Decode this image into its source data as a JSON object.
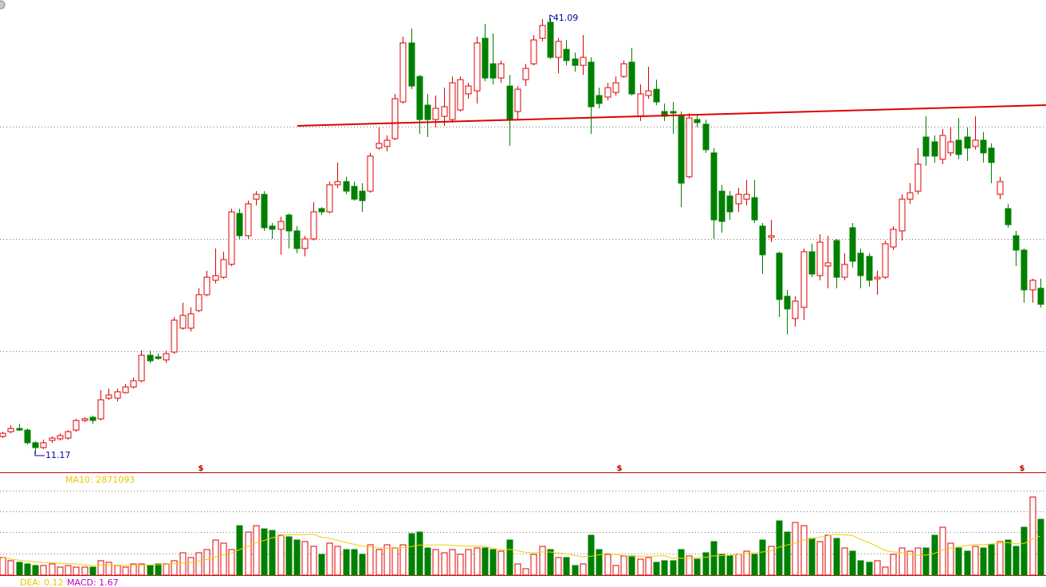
{
  "chart_data": {
    "type": "candlestick",
    "up_color": "#e00000",
    "down_color": "#008000",
    "ma_color": "#f0d000",
    "ylim": [
      9.91,
      42.35
    ],
    "grid_levels": [
      33.65,
      25.94,
      18.23
    ],
    "trendline": [
      33.71,
      35.13
    ],
    "high_label": 41.09,
    "low_label": 11.17,
    "event_markers": [
      "$",
      "$",
      "$"
    ],
    "indicator_labels": [
      "MA10: 2871093",
      "DEA: 0.12",
      "MACD: 1.67"
    ],
    "volume_ylim": [
      0,
      7526400
    ],
    "volume_grid_levels": [
      6233000,
      4704000,
      3175000,
      1588000
    ],
    "open": [
      12.37,
      12.7,
      12.92,
      12.81,
      11.94,
      11.61,
      12.1,
      12.21,
      12.26,
      12.81,
      13.47,
      13.69,
      13.58,
      15.0,
      15.0,
      15.38,
      15.77,
      16.2,
      17.95,
      17.84,
      17.63,
      18.17,
      19.81,
      19.81,
      21.02,
      22.11,
      23.1,
      23.31,
      24.19,
      27.69,
      26.16,
      28.67,
      29.0,
      26.82,
      26.6,
      27.58,
      26.49,
      25.28,
      25.94,
      28.02,
      27.8,
      29.66,
      29.88,
      29.55,
      29.22,
      29.22,
      32.18,
      32.29,
      32.83,
      35.35,
      39.4,
      37.1,
      35.13,
      34.14,
      34.36,
      34.14,
      34.8,
      35.9,
      36.11,
      39.72,
      37.97,
      36.99,
      36.44,
      34.69,
      36.88,
      37.97,
      39.72,
      40.82,
      38.41,
      38.96,
      38.3,
      37.86,
      38.08,
      35.79,
      35.68,
      36.0,
      37.1,
      38.08,
      34.36,
      35.79,
      36.22,
      34.69,
      34.69,
      34.36,
      30.21,
      34.14,
      33.82,
      31.85,
      29.22,
      28.89,
      28.35,
      28.67,
      28.78,
      26.82,
      26.05,
      24.96,
      22.0,
      20.47,
      21.24,
      25.06,
      23.42,
      24.08,
      25.83,
      23.31,
      26.71,
      24.96,
      24.74,
      23.2,
      23.31,
      25.39,
      26.49,
      28.67,
      29.22,
      32.94,
      32.61,
      31.41,
      31.85,
      32.72,
      32.94,
      32.29,
      32.72,
      32.18,
      29.0,
      28.02,
      26.16,
      25.17,
      22.44,
      22.55
    ],
    "close": [
      12.59,
      12.92,
      12.81,
      11.94,
      11.61,
      11.94,
      12.26,
      12.43,
      12.7,
      13.47,
      13.58,
      13.47,
      14.89,
      15.22,
      15.44,
      15.77,
      16.2,
      17.95,
      17.57,
      17.73,
      18.06,
      20.36,
      20.69,
      20.8,
      22.11,
      23.31,
      23.42,
      24.52,
      27.8,
      26.16,
      28.35,
      29.0,
      26.71,
      26.6,
      27.14,
      26.49,
      25.28,
      25.94,
      27.8,
      27.8,
      29.66,
      29.88,
      29.22,
      28.67,
      28.57,
      31.63,
      32.5,
      32.72,
      35.57,
      39.4,
      36.44,
      34.14,
      34.14,
      34.91,
      35.02,
      36.66,
      36.88,
      36.44,
      39.4,
      36.99,
      36.99,
      37.97,
      34.14,
      36.22,
      37.65,
      39.61,
      40.6,
      38.41,
      39.51,
      38.19,
      37.86,
      38.41,
      35.02,
      35.24,
      36.33,
      36.66,
      37.97,
      35.9,
      35.9,
      36.11,
      35.35,
      34.36,
      34.58,
      29.77,
      34.25,
      33.93,
      32.07,
      27.25,
      27.14,
      27.8,
      29.0,
      29.0,
      27.25,
      24.85,
      26.16,
      21.78,
      21.13,
      21.67,
      25.06,
      23.53,
      25.72,
      24.3,
      23.31,
      24.19,
      24.41,
      23.42,
      23.1,
      23.31,
      25.61,
      26.6,
      28.67,
      29.11,
      31.08,
      31.63,
      31.63,
      33.05,
      32.61,
      31.74,
      32.18,
      32.72,
      31.85,
      31.19,
      29.88,
      26.92,
      25.17,
      22.44,
      23.1,
      21.45
    ],
    "high": [
      12.7,
      13.14,
      13.25,
      12.92,
      12.05,
      12.16,
      12.37,
      12.59,
      12.81,
      13.58,
      13.69,
      13.8,
      15.55,
      15.66,
      15.66,
      15.98,
      16.42,
      18.28,
      18.28,
      18.06,
      18.28,
      20.58,
      21.56,
      21.24,
      22.55,
      23.75,
      25.28,
      25.06,
      28.02,
      28.02,
      28.57,
      29.22,
      29.22,
      27.03,
      27.47,
      27.69,
      26.82,
      26.16,
      28.46,
      28.13,
      29.88,
      31.19,
      30.21,
      29.88,
      29.77,
      31.85,
      33.6,
      33.05,
      35.9,
      39.83,
      40.38,
      37.21,
      35.9,
      35.79,
      36.33,
      37.1,
      37.1,
      36.66,
      39.83,
      40.71,
      40.05,
      38.19,
      37.21,
      36.44,
      37.97,
      39.94,
      41.04,
      41.09,
      39.72,
      39.61,
      38.74,
      39.94,
      38.41,
      36.33,
      36.66,
      37.1,
      38.19,
      39.07,
      36.55,
      37.76,
      36.88,
      35.24,
      35.35,
      34.69,
      34.58,
      34.47,
      34.14,
      32.18,
      29.66,
      29.22,
      29.44,
      29.99,
      29.99,
      27.03,
      27.25,
      25.06,
      22.44,
      22.0,
      25.28,
      25.61,
      26.27,
      26.16,
      25.94,
      24.96,
      27.03,
      25.28,
      24.96,
      23.75,
      25.83,
      26.82,
      29.0,
      29.77,
      32.18,
      34.36,
      33.05,
      33.49,
      33.6,
      34.25,
      33.6,
      34.36,
      33.27,
      32.5,
      30.21,
      28.35,
      26.49,
      25.28,
      23.2,
      23.2
    ],
    "low": [
      12.26,
      12.59,
      12.76,
      11.83,
      11.17,
      11.5,
      11.94,
      12.1,
      12.16,
      12.7,
      13.36,
      13.25,
      13.47,
      14.89,
      14.78,
      15.33,
      15.66,
      16.09,
      17.41,
      17.63,
      17.41,
      18.06,
      19.7,
      19.59,
      20.91,
      22.0,
      22.88,
      23.2,
      24.08,
      25.94,
      25.94,
      28.24,
      26.49,
      25.94,
      24.85,
      25.28,
      24.96,
      24.74,
      25.83,
      27.58,
      27.69,
      29.44,
      29.0,
      28.57,
      27.8,
      29.11,
      32.07,
      31.96,
      32.72,
      35.24,
      36.22,
      33.16,
      32.94,
      33.6,
      33.71,
      33.93,
      34.69,
      35.57,
      35.24,
      36.77,
      36.55,
      36.66,
      32.34,
      34.14,
      36.44,
      37.86,
      39.51,
      38.3,
      37.32,
      37.86,
      37.43,
      37.21,
      33.16,
      34.91,
      35.46,
      35.79,
      36.99,
      35.79,
      34.04,
      35.57,
      35.13,
      34.04,
      33.16,
      28.13,
      30.1,
      33.6,
      31.85,
      25.94,
      26.38,
      27.25,
      27.8,
      28.24,
      27.03,
      23.53,
      25.72,
      20.58,
      19.38,
      19.92,
      20.36,
      23.31,
      23.1,
      22.55,
      22.55,
      23.1,
      23.97,
      22.55,
      22.66,
      22.11,
      23.2,
      25.17,
      25.83,
      28.35,
      29.0,
      30.97,
      31.19,
      31.08,
      31.63,
      31.41,
      31.3,
      32.07,
      31.19,
      29.77,
      28.67,
      26.71,
      24.08,
      21.56,
      21.56,
      21.24
    ],
    "volume": [
      1294000,
      1058000,
      941000,
      823000,
      706000,
      706000,
      823000,
      588000,
      706000,
      588000,
      588000,
      588000,
      1058000,
      941000,
      706000,
      588000,
      823000,
      823000,
      706000,
      823000,
      823000,
      1058000,
      1646000,
      1294000,
      1646000,
      1882000,
      2587000,
      2352000,
      1882000,
      3646000,
      3175000,
      3646000,
      3410000,
      3293000,
      2940000,
      2822000,
      2587000,
      2470000,
      2117000,
      1529000,
      2352000,
      2117000,
      1882000,
      1882000,
      1529000,
      2234000,
      1882000,
      2234000,
      1999000,
      2234000,
      3058000,
      3175000,
      1999000,
      1882000,
      1646000,
      1882000,
      1529000,
      1882000,
      1999000,
      1999000,
      1882000,
      1764000,
      2587000,
      823000,
      470000,
      1529000,
      2117000,
      1882000,
      1294000,
      1294000,
      706000,
      823000,
      2940000,
      1882000,
      1529000,
      706000,
      1411000,
      1411000,
      1176000,
      1294000,
      941000,
      1058000,
      1058000,
      1882000,
      1411000,
      1176000,
      1646000,
      2470000,
      1529000,
      1411000,
      1529000,
      1764000,
      1529000,
      2587000,
      2117000,
      3998000,
      3175000,
      3881000,
      3646000,
      2705000,
      2470000,
      2940000,
      2705000,
      1999000,
      1764000,
      1058000,
      941000,
      1058000,
      588000,
      1529000,
      1999000,
      1764000,
      1999000,
      1999000,
      2940000,
      3528000,
      2352000,
      1999000,
      1764000,
      2117000,
      1999000,
      2234000,
      2470000,
      2587000,
      2117000,
      3528000,
      5762000,
      4116000
    ]
  }
}
